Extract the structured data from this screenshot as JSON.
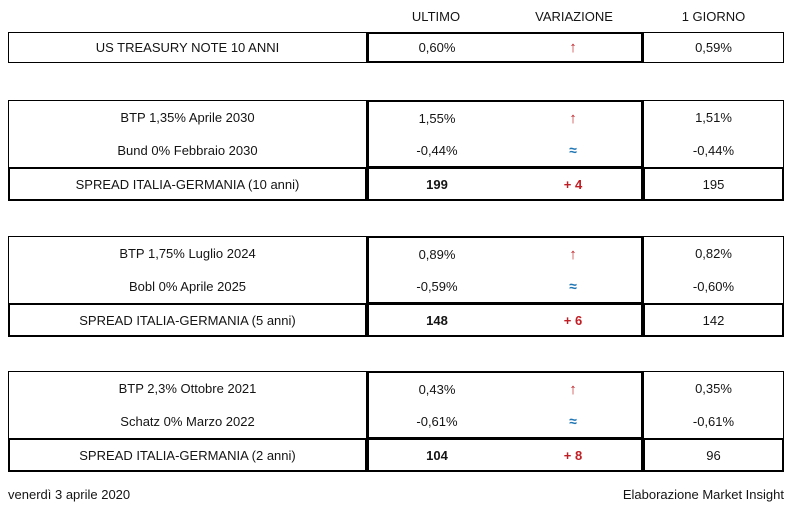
{
  "header": {
    "ultimo": "ULTIMO",
    "variazione": "VARIAZIONE",
    "giorno": "1 GIORNO"
  },
  "colors": {
    "up_arrow_red": "#C01E24",
    "approx_blue": "#1F76B4",
    "border": "#000000"
  },
  "icons": {
    "up_arrow": "↑",
    "approx_equal": "≈"
  },
  "blocks": [
    {
      "name": "us-treasury",
      "rows": [
        {
          "label": "US TREASURY NOTE 10 ANNI",
          "ultimo": "0,60%",
          "variazione": "↑",
          "variazione_type": "up",
          "giorno": "0,59%"
        }
      ]
    },
    {
      "name": "10-anni",
      "rows": [
        {
          "label": "BTP 1,35% Aprile 2030",
          "ultimo": "1,55%",
          "variazione": "↑",
          "variazione_type": "up",
          "giorno": "1,51%"
        },
        {
          "label": "Bund 0% Febbraio 2030",
          "ultimo": "-0,44%",
          "variazione": "≈",
          "variazione_type": "approx",
          "giorno": "-0,44%"
        }
      ],
      "spread": {
        "label": "SPREAD ITALIA-GERMANIA (10 anni)",
        "ultimo": "199",
        "variazione": "+ 4",
        "giorno": "195"
      }
    },
    {
      "name": "5-anni",
      "rows": [
        {
          "label": "BTP 1,75% Luglio 2024",
          "ultimo": "0,89%",
          "variazione": "↑",
          "variazione_type": "up",
          "giorno": "0,82%"
        },
        {
          "label": "Bobl 0% Aprile 2025",
          "ultimo": "-0,59%",
          "variazione": "≈",
          "variazione_type": "approx",
          "giorno": "-0,60%"
        }
      ],
      "spread": {
        "label": "SPREAD ITALIA-GERMANIA (5 anni)",
        "ultimo": "148",
        "variazione": "+ 6",
        "giorno": "142"
      }
    },
    {
      "name": "2-anni",
      "rows": [
        {
          "label": "BTP 2,3% Ottobre 2021",
          "ultimo": "0,43%",
          "variazione": "↑",
          "variazione_type": "up",
          "giorno": "0,35%"
        },
        {
          "label": "Schatz 0% Marzo 2022",
          "ultimo": "-0,61%",
          "variazione": "≈",
          "variazione_type": "approx",
          "giorno": "-0,61%"
        }
      ],
      "spread": {
        "label": "SPREAD ITALIA-GERMANIA (2 anni)",
        "ultimo": "104",
        "variazione": "+ 8",
        "giorno": "96"
      }
    }
  ],
  "footer": {
    "date": "venerdì 3 aprile 2020",
    "credit": "Elaborazione Market Insight"
  }
}
